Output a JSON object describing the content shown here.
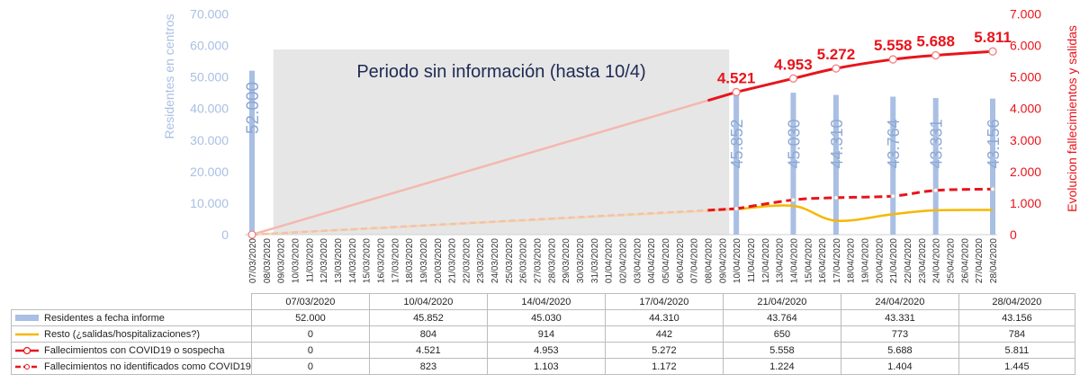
{
  "chart_data": {
    "type": "bar+line",
    "annotation": "Periodo sin información (hasta 10/4)",
    "y_left": {
      "label": "Residentes en centros",
      "ticks": [
        "70.000",
        "60.000",
        "50.000",
        "40.000",
        "30.000",
        "20.000",
        "10.000",
        "0"
      ],
      "range": [
        0,
        70000
      ]
    },
    "y_right": {
      "label": "Evolucion fallecimientos y salidas",
      "ticks": [
        "7.000",
        "6.000",
        "5.000",
        "4.000",
        "3.000",
        "2.000",
        "1.000",
        "0"
      ],
      "range": [
        0,
        7000
      ]
    },
    "x_dates": [
      "07/03/2020",
      "08/03/2020",
      "09/03/2020",
      "10/03/2020",
      "11/03/2020",
      "12/03/2020",
      "13/03/2020",
      "14/03/2020",
      "15/03/2020",
      "16/03/2020",
      "17/03/2020",
      "18/03/2020",
      "19/03/2020",
      "20/03/2020",
      "21/03/2020",
      "22/03/2020",
      "23/03/2020",
      "24/03/2020",
      "25/03/2020",
      "26/03/2020",
      "27/03/2020",
      "28/03/2020",
      "29/03/2020",
      "30/03/2020",
      "31/03/2020",
      "01/04/2020",
      "02/04/2020",
      "03/04/2020",
      "04/04/2020",
      "05/04/2020",
      "06/04/2020",
      "07/04/2020",
      "08/04/2020",
      "09/04/2020",
      "10/04/2020",
      "11/04/2020",
      "12/04/2020",
      "13/04/2020",
      "14/04/2020",
      "15/04/2020",
      "16/04/2020",
      "17/04/2020",
      "18/04/2020",
      "19/04/2020",
      "20/04/2020",
      "21/04/2020",
      "22/04/2020",
      "23/04/2020",
      "24/04/2020",
      "25/04/2020",
      "26/04/2020",
      "27/04/2020",
      "28/04/2020"
    ],
    "report_dates": [
      "07/03/2020",
      "10/04/2020",
      "14/04/2020",
      "17/04/2020",
      "21/04/2020",
      "24/04/2020",
      "28/04/2020"
    ],
    "series": [
      {
        "name": "Residentes a fecha informe",
        "type": "bar",
        "axis": "left",
        "color": "#a9bfe3",
        "values": [
          52000,
          45852,
          45030,
          44310,
          43764,
          43331,
          43156
        ],
        "labels": [
          "52.000",
          "45.852",
          "45.030",
          "44.310",
          "43.764",
          "43.331",
          "43.156"
        ]
      },
      {
        "name": "Resto (¿salidas/hospitalizaciones?)",
        "type": "line",
        "axis": "right",
        "color": "#f5b800",
        "values": [
          0,
          804,
          914,
          442,
          650,
          773,
          784
        ],
        "labels": [
          "0",
          "804",
          "914",
          "442",
          "650",
          "773",
          "784"
        ]
      },
      {
        "name": "Fallecimientos con COVID19 o sospecha",
        "type": "line",
        "axis": "right",
        "color": "#e8141b",
        "values": [
          0,
          4521,
          4953,
          5272,
          5558,
          5688,
          5811
        ],
        "labels": [
          "0",
          "4.521",
          "4.953",
          "5.272",
          "5.558",
          "5.688",
          "5.811"
        ]
      },
      {
        "name": "Fallecimientos no identificados como COVID19",
        "type": "line-dashed",
        "axis": "right",
        "color": "#e8141b",
        "values": [
          0,
          823,
          1103,
          1172,
          1224,
          1404,
          1445
        ],
        "labels": [
          "0",
          "823",
          "1.103",
          "1.172",
          "1.224",
          "1.404",
          "1.445"
        ]
      }
    ]
  }
}
